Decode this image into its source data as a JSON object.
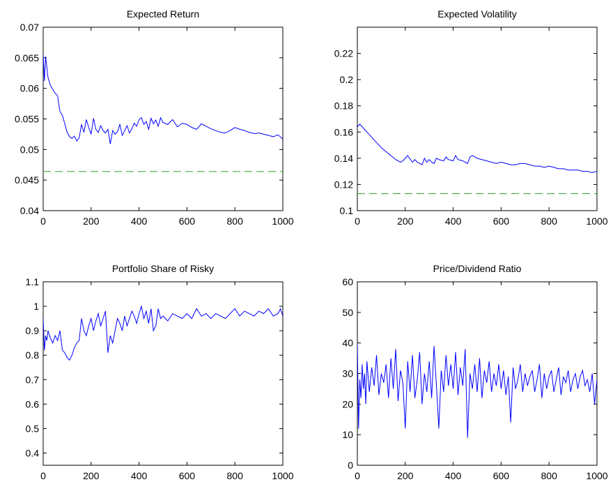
{
  "chart_data": [
    {
      "type": "line",
      "title": "Expected Return",
      "xlabel": "",
      "ylabel": "",
      "xlim": [
        0,
        1000
      ],
      "ylim": [
        0.04,
        0.07
      ],
      "xticks": [
        "0",
        "200",
        "400",
        "600",
        "800",
        "1000"
      ],
      "yticks": [
        "0.04",
        "0.045",
        "0.05",
        "0.055",
        "0.06",
        "0.065",
        "0.07"
      ],
      "grid": false,
      "series": [
        {
          "color": "#0000ff",
          "style": "solid",
          "x": [
            0,
            5,
            10,
            20,
            30,
            40,
            50,
            60,
            70,
            80,
            90,
            100,
            110,
            120,
            130,
            140,
            150,
            160,
            170,
            180,
            190,
            200,
            210,
            220,
            230,
            240,
            250,
            260,
            270,
            280,
            290,
            300,
            310,
            320,
            330,
            340,
            350,
            360,
            370,
            380,
            390,
            400,
            410,
            420,
            430,
            440,
            450,
            460,
            470,
            480,
            490,
            500,
            520,
            540,
            560,
            580,
            600,
            620,
            640,
            660,
            680,
            700,
            720,
            740,
            760,
            780,
            800,
            820,
            840,
            860,
            880,
            900,
            920,
            940,
            960,
            980,
            1000
          ],
          "values": [
            0.0655,
            0.0612,
            0.0652,
            0.0618,
            0.0605,
            0.0598,
            0.0592,
            0.0588,
            0.0562,
            0.0556,
            0.0542,
            0.0528,
            0.0521,
            0.0518,
            0.0522,
            0.0514,
            0.0519,
            0.0541,
            0.0528,
            0.0549,
            0.0536,
            0.0525,
            0.0551,
            0.0533,
            0.0528,
            0.0539,
            0.0531,
            0.0527,
            0.0533,
            0.0509,
            0.0531,
            0.0525,
            0.0529,
            0.0541,
            0.0523,
            0.0531,
            0.0539,
            0.0527,
            0.0534,
            0.0543,
            0.0538,
            0.0549,
            0.0552,
            0.0541,
            0.0546,
            0.0533,
            0.0551,
            0.0542,
            0.0548,
            0.0538,
            0.0552,
            0.0544,
            0.0541,
            0.0549,
            0.0537,
            0.0543,
            0.0541,
            0.0536,
            0.0533,
            0.0542,
            0.0538,
            0.0534,
            0.0531,
            0.0528,
            0.0527,
            0.0531,
            0.0536,
            0.0533,
            0.0531,
            0.0528,
            0.0526,
            0.0527,
            0.0525,
            0.0523,
            0.0521,
            0.0524,
            0.0517
          ]
        },
        {
          "color": "#2ca02c",
          "style": "dashed",
          "x": [
            0,
            1000
          ],
          "values": [
            0.0464,
            0.0464
          ]
        }
      ]
    },
    {
      "type": "line",
      "title": "Expected Volatility",
      "xlabel": "",
      "ylabel": "",
      "xlim": [
        0,
        1000
      ],
      "ylim": [
        0.1,
        0.24
      ],
      "xticks": [
        "0",
        "200",
        "400",
        "600",
        "800",
        "1000"
      ],
      "yticks": [
        "0.1",
        "0.12",
        "0.14",
        "0.16",
        "0.18",
        "0.2",
        "0.22"
      ],
      "grid": false,
      "series": [
        {
          "color": "#0000ff",
          "style": "solid",
          "x": [
            0,
            10,
            20,
            40,
            60,
            80,
            100,
            120,
            140,
            160,
            180,
            190,
            200,
            210,
            230,
            240,
            250,
            260,
            270,
            280,
            290,
            300,
            310,
            320,
            330,
            340,
            360,
            370,
            380,
            400,
            410,
            420,
            440,
            460,
            470,
            480,
            500,
            520,
            540,
            560,
            580,
            600,
            620,
            640,
            660,
            680,
            700,
            720,
            740,
            760,
            780,
            800,
            820,
            840,
            860,
            880,
            900,
            920,
            940,
            960,
            980,
            1000
          ],
          "values": [
            0.164,
            0.166,
            0.164,
            0.16,
            0.156,
            0.152,
            0.148,
            0.145,
            0.142,
            0.139,
            0.137,
            0.138,
            0.14,
            0.142,
            0.137,
            0.139,
            0.137,
            0.136,
            0.135,
            0.14,
            0.137,
            0.139,
            0.137,
            0.136,
            0.14,
            0.139,
            0.138,
            0.141,
            0.139,
            0.138,
            0.142,
            0.139,
            0.138,
            0.136,
            0.141,
            0.142,
            0.14,
            0.139,
            0.138,
            0.137,
            0.136,
            0.137,
            0.136,
            0.135,
            0.135,
            0.136,
            0.136,
            0.135,
            0.134,
            0.134,
            0.133,
            0.134,
            0.133,
            0.132,
            0.132,
            0.131,
            0.131,
            0.131,
            0.13,
            0.13,
            0.129,
            0.13
          ]
        },
        {
          "color": "#2ca02c",
          "style": "dashed",
          "x": [
            0,
            1000
          ],
          "values": [
            0.113,
            0.113
          ]
        }
      ]
    },
    {
      "type": "line",
      "title": "Portfolio Share of Risky",
      "xlabel": "",
      "ylabel": "",
      "xlim": [
        0,
        1000
      ],
      "ylim": [
        0.35,
        1.1
      ],
      "xticks": [
        "0",
        "200",
        "400",
        "600",
        "800",
        "1000"
      ],
      "yticks": [
        "0.4",
        "0.5",
        "0.6",
        "0.7",
        "0.8",
        "0.9",
        "1",
        "1.1"
      ],
      "grid": false,
      "series": [
        {
          "color": "#0000ff",
          "style": "solid",
          "x": [
            0,
            5,
            10,
            15,
            20,
            30,
            40,
            50,
            60,
            70,
            80,
            90,
            100,
            110,
            120,
            130,
            140,
            150,
            160,
            170,
            180,
            190,
            200,
            210,
            220,
            230,
            240,
            250,
            260,
            270,
            280,
            290,
            300,
            310,
            320,
            330,
            340,
            350,
            360,
            370,
            380,
            390,
            400,
            410,
            420,
            430,
            440,
            450,
            460,
            470,
            480,
            490,
            500,
            520,
            540,
            560,
            580,
            600,
            620,
            640,
            660,
            680,
            700,
            720,
            740,
            760,
            780,
            800,
            820,
            840,
            860,
            880,
            900,
            920,
            940,
            960,
            980,
            990,
            1000
          ],
          "values": [
            0.95,
            0.82,
            0.88,
            0.86,
            0.9,
            0.87,
            0.85,
            0.88,
            0.86,
            0.9,
            0.82,
            0.81,
            0.79,
            0.78,
            0.8,
            0.83,
            0.85,
            0.86,
            0.95,
            0.9,
            0.88,
            0.92,
            0.95,
            0.9,
            0.94,
            0.97,
            0.92,
            0.95,
            0.98,
            0.81,
            0.88,
            0.85,
            0.9,
            0.95,
            0.93,
            0.9,
            0.96,
            0.92,
            0.95,
            0.98,
            0.96,
            0.93,
            0.97,
            1.0,
            0.95,
            0.98,
            0.93,
            0.99,
            0.9,
            0.92,
            0.99,
            0.95,
            0.96,
            0.94,
            0.97,
            0.96,
            0.95,
            0.97,
            0.95,
            0.99,
            0.96,
            0.97,
            0.95,
            0.97,
            0.96,
            0.95,
            0.97,
            0.99,
            0.96,
            0.98,
            0.97,
            0.96,
            0.98,
            0.97,
            0.99,
            0.96,
            0.97,
            0.99,
            0.96
          ]
        }
      ]
    },
    {
      "type": "line",
      "title": "Price/Dividend Ratio",
      "xlabel": "",
      "ylabel": "",
      "xlim": [
        0,
        1000
      ],
      "ylim": [
        0,
        60
      ],
      "xticks": [
        "0",
        "200",
        "400",
        "600",
        "800",
        "1000"
      ],
      "yticks": [
        "0",
        "10",
        "20",
        "30",
        "40",
        "50",
        "60"
      ],
      "grid": false,
      "series": [
        {
          "color": "#0000ff",
          "style": "solid",
          "x": [
            0,
            5,
            10,
            15,
            20,
            25,
            30,
            35,
            40,
            50,
            60,
            70,
            80,
            90,
            100,
            110,
            120,
            130,
            140,
            150,
            160,
            170,
            180,
            190,
            200,
            210,
            220,
            230,
            240,
            250,
            260,
            270,
            280,
            290,
            300,
            310,
            320,
            330,
            340,
            350,
            360,
            370,
            380,
            390,
            400,
            410,
            420,
            430,
            440,
            450,
            460,
            470,
            480,
            490,
            500,
            510,
            520,
            530,
            540,
            550,
            560,
            570,
            580,
            590,
            600,
            610,
            620,
            630,
            640,
            650,
            660,
            670,
            680,
            690,
            700,
            710,
            720,
            730,
            740,
            750,
            760,
            770,
            780,
            790,
            800,
            810,
            820,
            830,
            840,
            850,
            860,
            870,
            880,
            890,
            900,
            910,
            920,
            930,
            940,
            950,
            960,
            970,
            980,
            990,
            1000
          ],
          "values": [
            40,
            12,
            28,
            22,
            33,
            25,
            30,
            20,
            34,
            24,
            32,
            26,
            36,
            23,
            30,
            27,
            33,
            22,
            35,
            25,
            38,
            21,
            31,
            27,
            12,
            34,
            24,
            36,
            22,
            28,
            37,
            20,
            30,
            24,
            34,
            22,
            39,
            26,
            12,
            31,
            24,
            36,
            26,
            33,
            25,
            37,
            23,
            32,
            26,
            38,
            9,
            30,
            25,
            33,
            24,
            35,
            22,
            31,
            27,
            34,
            24,
            30,
            26,
            33,
            25,
            31,
            23,
            29,
            14,
            32,
            25,
            28,
            33,
            24,
            30,
            26,
            29,
            31,
            24,
            28,
            33,
            22,
            30,
            25,
            29,
            31,
            24,
            28,
            32,
            23,
            29,
            27,
            31,
            24,
            28,
            30,
            25,
            29,
            31,
            26,
            28,
            24,
            30,
            20,
            28
          ]
        }
      ]
    }
  ]
}
